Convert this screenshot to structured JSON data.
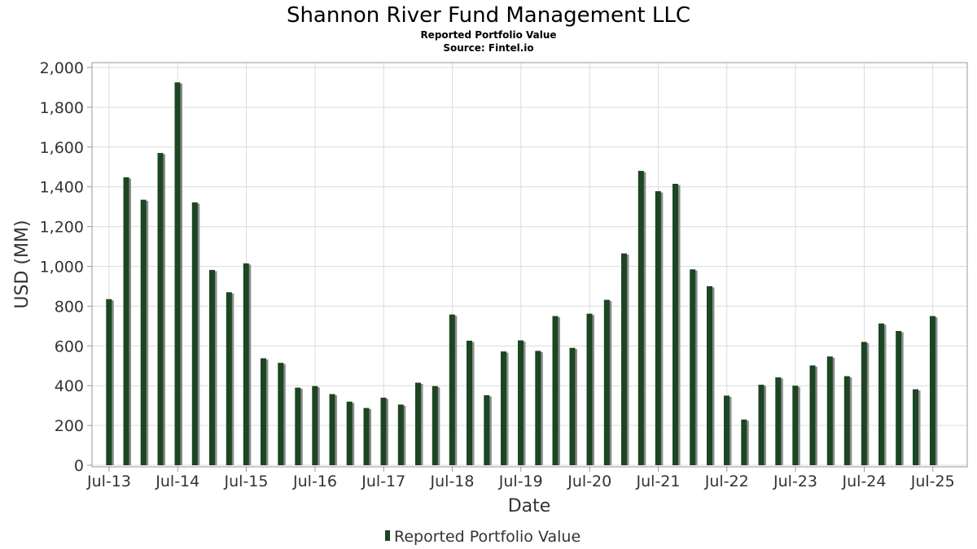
{
  "colors": {
    "bar": "#1c4522",
    "bar_shadow": "#8c8c8c",
    "grid": "#dcdcdc",
    "axis": "#9a9a9a"
  },
  "chart_data": {
    "type": "bar",
    "title": "Shannon River Fund Management LLC",
    "subtitle_1": "Reported Portfolio Value",
    "subtitle_2": "Source: Fintel.io",
    "xlabel": "Date",
    "ylabel": "USD (MM)",
    "ylim": [
      0,
      2000
    ],
    "yticks": [
      0,
      200,
      400,
      600,
      800,
      1000,
      1200,
      1400,
      1600,
      1800,
      2000
    ],
    "ytick_labels": [
      "0",
      "200",
      "400",
      "600",
      "800",
      "1,000",
      "1,200",
      "1,400",
      "1,600",
      "1,800",
      "2,000"
    ],
    "xlim": [
      "2013-04-01",
      "2025-12-31"
    ],
    "xticks": [
      "2013-07-01",
      "2014-07-01",
      "2015-07-01",
      "2016-07-01",
      "2017-07-01",
      "2018-07-01",
      "2019-07-01",
      "2020-07-01",
      "2021-07-01",
      "2022-07-01",
      "2023-07-01",
      "2024-07-01",
      "2025-07-01"
    ],
    "xtick_labels": [
      "Jul-13",
      "Jul-14",
      "Jul-15",
      "Jul-16",
      "Jul-17",
      "Jul-18",
      "Jul-19",
      "Jul-20",
      "Jul-21",
      "Jul-22",
      "Jul-23",
      "Jul-24",
      "Jul-25"
    ],
    "grid": true,
    "legend": {
      "position": "bottom",
      "entries": [
        "Reported Portfolio Value"
      ]
    },
    "series": [
      {
        "name": "Reported Portfolio Value",
        "x": [
          "2013-06-30",
          "2013-09-30",
          "2013-12-31",
          "2014-03-31",
          "2014-06-30",
          "2014-09-30",
          "2014-12-31",
          "2015-03-31",
          "2015-06-30",
          "2015-09-30",
          "2015-12-31",
          "2016-03-31",
          "2016-06-30",
          "2016-09-30",
          "2016-12-31",
          "2017-03-31",
          "2017-06-30",
          "2017-09-30",
          "2017-12-31",
          "2018-03-31",
          "2018-06-30",
          "2018-09-30",
          "2018-12-31",
          "2019-03-31",
          "2019-06-30",
          "2019-09-30",
          "2019-12-31",
          "2020-03-31",
          "2020-06-30",
          "2020-09-30",
          "2020-12-31",
          "2021-03-31",
          "2021-06-30",
          "2021-09-30",
          "2021-12-31",
          "2022-03-31",
          "2022-06-30",
          "2022-09-30",
          "2022-12-31",
          "2023-03-31",
          "2023-06-30",
          "2023-09-30",
          "2023-12-31",
          "2024-03-31",
          "2024-06-30",
          "2024-09-30",
          "2024-12-31",
          "2025-03-31",
          "2025-06-30"
        ],
        "values": [
          835,
          1448,
          1335,
          1570,
          1925,
          1322,
          982,
          870,
          1015,
          538,
          515,
          390,
          398,
          358,
          320,
          288,
          340,
          305,
          415,
          398,
          758,
          626,
          352,
          572,
          628,
          575,
          750,
          590,
          762,
          832,
          1065,
          1480,
          1378,
          1415,
          985,
          900,
          350,
          230,
          405,
          442,
          400,
          502,
          547,
          448,
          620,
          713,
          675,
          382,
          750
        ]
      }
    ]
  }
}
